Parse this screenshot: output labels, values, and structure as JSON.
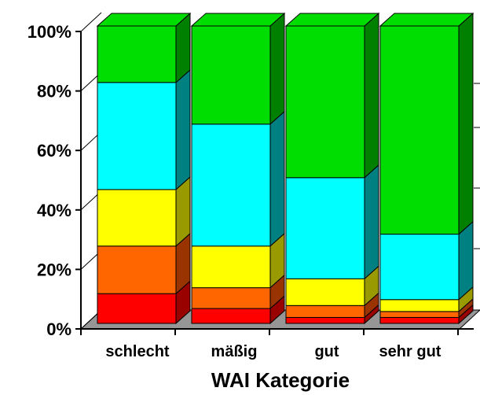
{
  "chart_data": {
    "type": "bar",
    "stacked": true,
    "percent": true,
    "three_d": true,
    "title": "",
    "xlabel": "WAI Kategorie",
    "ylabel": "",
    "ylim": [
      0,
      100
    ],
    "y_ticks": [
      0,
      20,
      40,
      60,
      80,
      100
    ],
    "y_tick_labels": [
      "0%",
      "20%",
      "40%",
      "60%",
      "80%",
      "100%"
    ],
    "categories": [
      "schlecht",
      "mäßig",
      "gut",
      "sehr gut"
    ],
    "series": [
      {
        "color": "#ff0000",
        "side_color": "#990000",
        "values": [
          10,
          5,
          2,
          2
        ]
      },
      {
        "color": "#ff6600",
        "side_color": "#993300",
        "values": [
          16,
          7,
          4,
          2
        ]
      },
      {
        "color": "#ffff00",
        "side_color": "#999900",
        "values": [
          19,
          14,
          9,
          4
        ]
      },
      {
        "color": "#00ffff",
        "side_color": "#008080",
        "values": [
          36,
          41,
          34,
          22
        ]
      },
      {
        "color": "#00dd00",
        "side_color": "#008000",
        "values": [
          19,
          33,
          51,
          70
        ]
      }
    ],
    "floor_color": "#969696",
    "grid": false,
    "legend": "none"
  }
}
